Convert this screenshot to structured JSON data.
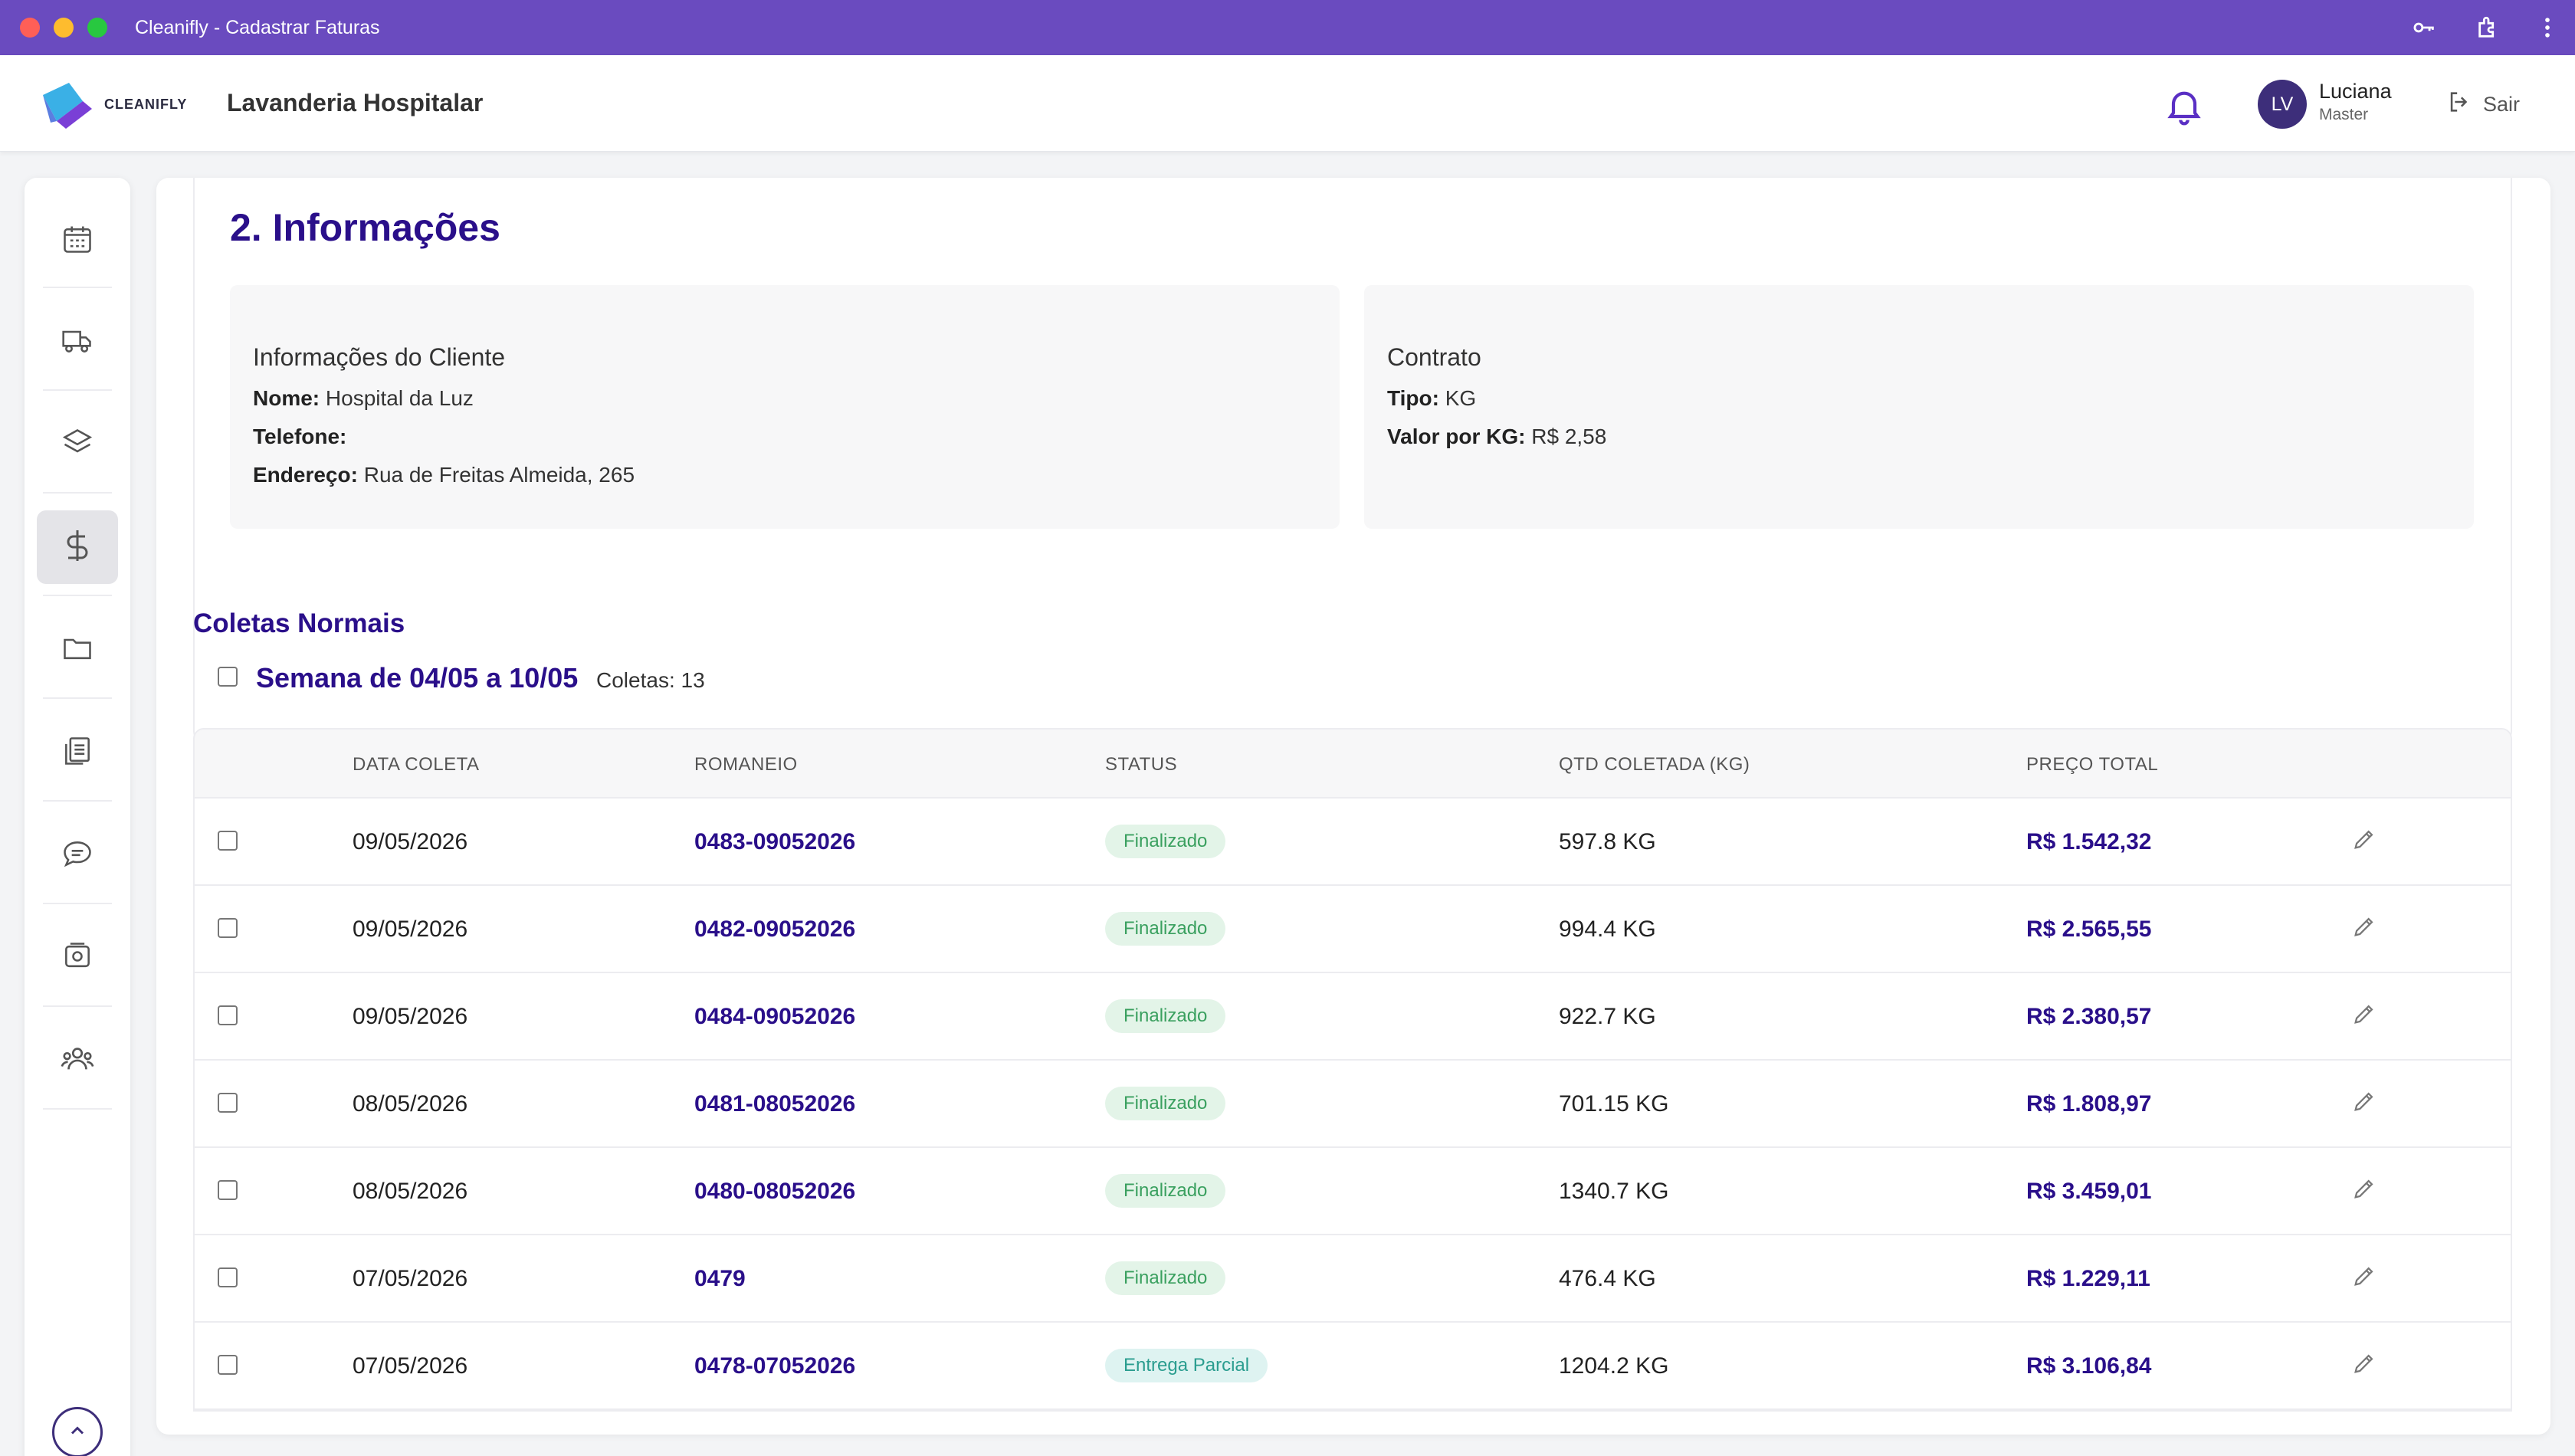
{
  "window": {
    "title": "Cleanifly - Cadastrar Faturas"
  },
  "header": {
    "logo_text": "CLEANIFLY",
    "app_name": "Lavanderia Hospitalar",
    "user": {
      "initials": "LV",
      "name": "Luciana",
      "role": "Master"
    },
    "logout_label": "Sair"
  },
  "sidebar": {
    "items": [
      {
        "icon": "calendar-icon"
      },
      {
        "icon": "truck-icon"
      },
      {
        "icon": "layers-icon"
      },
      {
        "icon": "dollar-icon",
        "active": true
      },
      {
        "icon": "folder-icon"
      },
      {
        "icon": "documents-icon"
      },
      {
        "icon": "chat-icon"
      },
      {
        "icon": "invoice-icon"
      },
      {
        "icon": "users-icon"
      }
    ]
  },
  "info": {
    "section_title": "2. Informações",
    "client": {
      "title": "Informações do Cliente",
      "name_label": "Nome:",
      "name": "Hospital da Luz",
      "phone_label": "Telefone:",
      "phone": "",
      "address_label": "Endereço:",
      "address": "Rua de Freitas Almeida, 265"
    },
    "contract": {
      "title": "Contrato",
      "type_label": "Tipo:",
      "type": "KG",
      "value_label": "Valor por KG:",
      "value": "R$ 2,58"
    }
  },
  "coletas": {
    "title": "Coletas Normais",
    "week_title": "Semana de 04/05 a 10/05",
    "week_count": "Coletas: 13",
    "columns": [
      "DATA COLETA",
      "ROMANEIO",
      "STATUS",
      "QTD COLETADA (KG)",
      "PREÇO TOTAL"
    ],
    "rows": [
      {
        "date": "09/05/2026",
        "romaneio": "0483-09052026",
        "status": "Finalizado",
        "qty": "597.8 KG",
        "price": "R$ 1.542,32"
      },
      {
        "date": "09/05/2026",
        "romaneio": "0482-09052026",
        "status": "Finalizado",
        "qty": "994.4 KG",
        "price": "R$ 2.565,55"
      },
      {
        "date": "09/05/2026",
        "romaneio": "0484-09052026",
        "status": "Finalizado",
        "qty": "922.7 KG",
        "price": "R$ 2.380,57"
      },
      {
        "date": "08/05/2026",
        "romaneio": "0481-08052026",
        "status": "Finalizado",
        "qty": "701.15 KG",
        "price": "R$ 1.808,97"
      },
      {
        "date": "08/05/2026",
        "romaneio": "0480-08052026",
        "status": "Finalizado",
        "qty": "1340.7 KG",
        "price": "R$ 3.459,01"
      },
      {
        "date": "07/05/2026",
        "romaneio": "0479",
        "status": "Finalizado",
        "qty": "476.4 KG",
        "price": "R$ 1.229,11"
      },
      {
        "date": "07/05/2026",
        "romaneio": "0478-07052026",
        "status": "Entrega Parcial",
        "qty": "1204.2 KG",
        "price": "R$ 3.106,84"
      }
    ]
  },
  "colors": {
    "titlebar": "#6a4bbf",
    "accent": "#2a0f8a",
    "success": "#3aa05f",
    "partial": "#2a9d8f"
  }
}
